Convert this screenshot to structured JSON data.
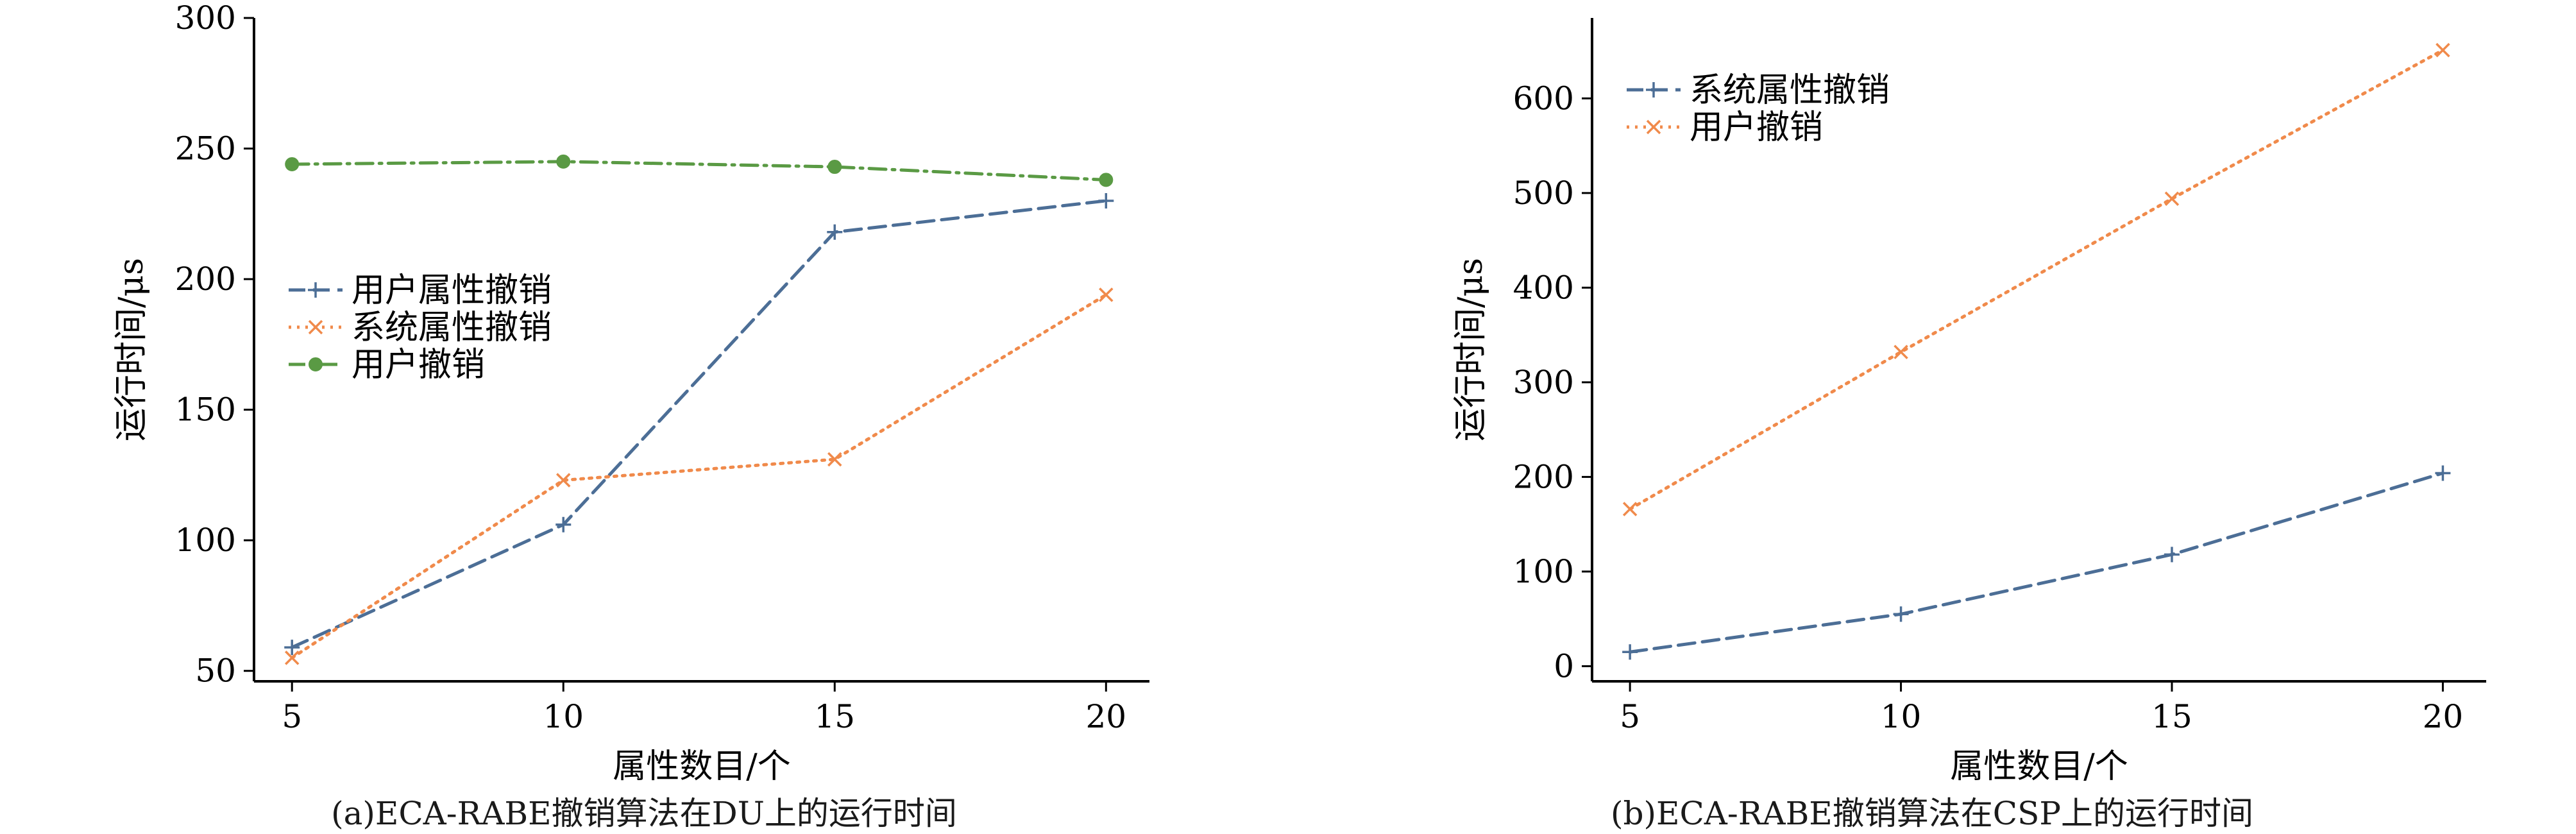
{
  "chart_data": [
    {
      "type": "line",
      "caption": "(a)ECA-RABE撤销算法在DU上的运行时间",
      "xlabel": "属性数目/个",
      "ylabel": "运行时间/μs",
      "x": [
        5,
        10,
        15,
        20
      ],
      "xticks": [
        5,
        10,
        15,
        20
      ],
      "yticks": [
        50,
        100,
        150,
        200,
        250,
        300
      ],
      "xlim": [
        4.3,
        20.8
      ],
      "ylim": [
        46,
        300
      ],
      "legend_position": "center-left",
      "series": [
        {
          "name": "用户属性撤销",
          "values": [
            59,
            106,
            218,
            230
          ],
          "color": "#4c6e96",
          "dash": "dashed",
          "marker": "plus"
        },
        {
          "name": "系统属性撤销",
          "values": [
            55,
            123,
            131,
            194
          ],
          "color": "#f08a4b",
          "dash": "dotted",
          "marker": "x"
        },
        {
          "name": "用户撤销",
          "values": [
            244,
            245,
            243,
            238
          ],
          "color": "#5a9a44",
          "dash": "dashdot",
          "marker": "circle"
        }
      ]
    },
    {
      "type": "line",
      "caption": "(b)ECA-RABE撤销算法在CSP上的运行时间",
      "xlabel": "属性数目/个",
      "ylabel": "运行时间/μs",
      "x": [
        5,
        10,
        15,
        20
      ],
      "xticks": [
        5,
        10,
        15,
        20
      ],
      "yticks": [
        0,
        100,
        200,
        300,
        400,
        500,
        600
      ],
      "xlim": [
        4.3,
        20.8
      ],
      "ylim": [
        -16,
        685
      ],
      "legend_position": "top-left",
      "series": [
        {
          "name": "系统属性撤销",
          "values": [
            15,
            55,
            118,
            204
          ],
          "color": "#4c6e96",
          "dash": "dashed",
          "marker": "plus"
        },
        {
          "name": "用户撤销",
          "values": [
            166,
            332,
            494,
            651
          ],
          "color": "#f08a4b",
          "dash": "dotted",
          "marker": "x"
        }
      ]
    }
  ]
}
